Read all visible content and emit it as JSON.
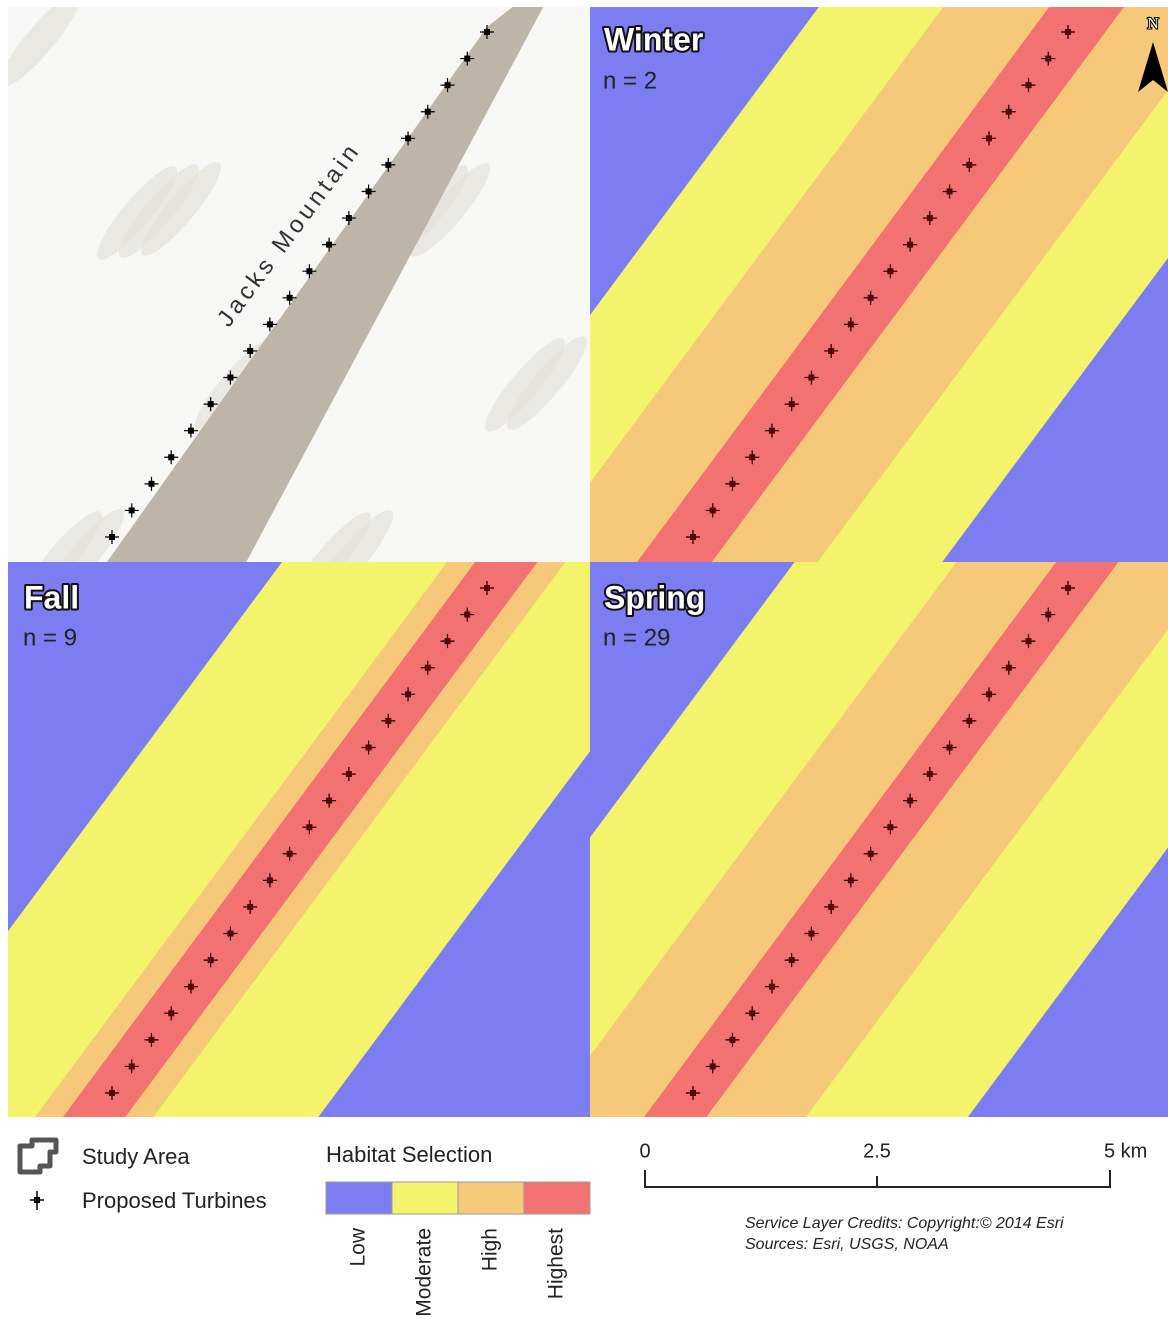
{
  "panels": [
    {
      "title": "Winter",
      "n": "n = 2"
    },
    {
      "title": "Fall",
      "n": "n = 9"
    },
    {
      "title": "Spring",
      "n": "n = 29"
    }
  ],
  "map_label": "Jacks Mountain",
  "north": "N",
  "legend": {
    "study_area": "Study Area",
    "turbines": "Proposed Turbines",
    "habitat_title": "Habitat Selection",
    "classes": [
      "Low",
      "Moderate",
      "High",
      "Highest"
    ]
  },
  "scale": {
    "labels": [
      "0",
      "2.5",
      "5 km"
    ]
  },
  "credits": [
    "Service Layer Credits: Copyright:© 2014 Esri",
    "Sources: Esri, USGS, NOAA"
  ]
}
